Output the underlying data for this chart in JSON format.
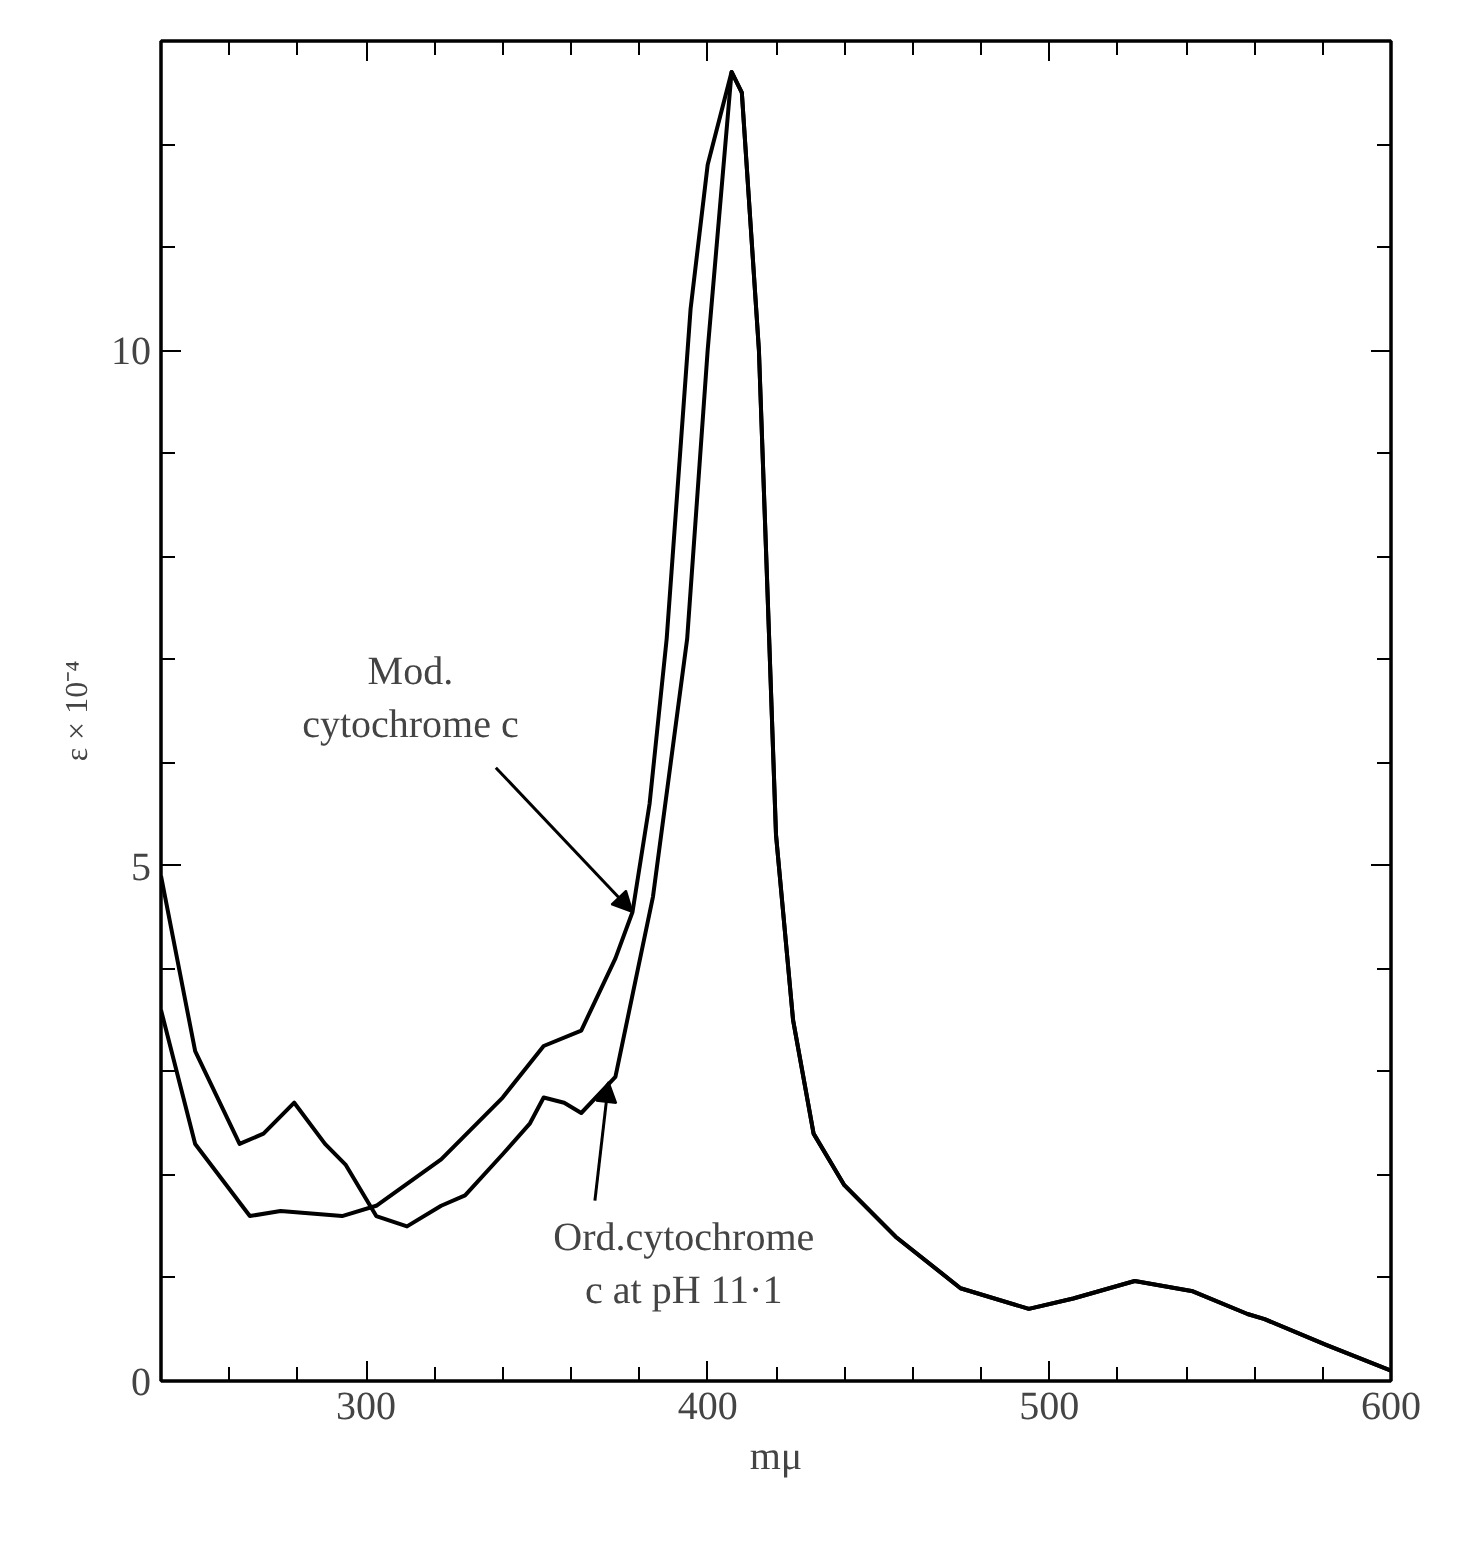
{
  "chart_data": {
    "type": "line",
    "xlabel": "mμ",
    "ylabel": "ε × 10⁻⁴",
    "xlim": [
      240,
      600
    ],
    "ylim": [
      0,
      13
    ],
    "xticks": [
      {
        "value": 260,
        "label": null
      },
      {
        "value": 280,
        "label": null
      },
      300,
      {
        "value": 320,
        "label": null
      },
      {
        "value": 340,
        "label": null
      },
      {
        "value": 360,
        "label": null
      },
      {
        "value": 380,
        "label": null
      },
      400,
      {
        "value": 420,
        "label": null
      },
      {
        "value": 440,
        "label": null
      },
      {
        "value": 460,
        "label": null
      },
      {
        "value": 480,
        "label": null
      },
      500,
      {
        "value": 520,
        "label": null
      },
      {
        "value": 540,
        "label": null
      },
      {
        "value": 560,
        "label": null
      },
      {
        "value": 580,
        "label": null
      },
      600
    ],
    "yticks": [
      0,
      {
        "value": 1,
        "label": null
      },
      {
        "value": 2,
        "label": null
      },
      {
        "value": 3,
        "label": null
      },
      {
        "value": 4,
        "label": null
      },
      5,
      {
        "value": 6,
        "label": null
      },
      {
        "value": 7,
        "label": null
      },
      {
        "value": 8,
        "label": null
      },
      {
        "value": 9,
        "label": null
      },
      10,
      {
        "value": 11,
        "label": null
      },
      {
        "value": 12,
        "label": null
      },
      {
        "value": 13,
        "label": null
      }
    ],
    "grid": false,
    "marker": "none",
    "line_style": "solid",
    "series": [
      {
        "color": "#000000",
        "x": [
          240,
          250,
          266,
          275,
          293,
          303,
          322,
          340,
          352,
          363,
          373,
          378,
          383,
          388,
          395,
          400,
          407,
          410,
          415,
          418,
          420,
          425,
          431,
          440,
          455,
          474,
          494,
          507,
          525,
          542,
          558,
          563,
          581,
          600
        ],
        "values": [
          3.6,
          2.3,
          1.6,
          1.65,
          1.6,
          1.7,
          2.15,
          2.75,
          3.25,
          3.4,
          4.1,
          4.55,
          5.6,
          7.2,
          10.4,
          11.8,
          12.7,
          12.5,
          10.0,
          7.2,
          5.3,
          3.5,
          2.4,
          1.9,
          1.4,
          0.9,
          0.7,
          0.8,
          0.97,
          0.87,
          0.65,
          0.6,
          0.35,
          0.1
        ]
      },
      {
        "color": "#000000",
        "x": [
          240,
          250,
          263,
          270,
          279,
          288,
          294,
          303,
          312,
          322,
          329,
          340,
          348,
          352,
          358,
          363,
          373,
          384,
          394,
          400,
          407,
          410,
          415,
          418,
          420,
          425,
          431,
          440,
          455,
          474,
          494,
          507,
          525,
          542,
          558,
          563,
          581,
          600
        ],
        "values": [
          4.9,
          3.2,
          2.3,
          2.4,
          2.7,
          2.3,
          2.1,
          1.6,
          1.5,
          1.7,
          1.8,
          2.2,
          2.5,
          2.75,
          2.7,
          2.6,
          2.95,
          4.7,
          7.2,
          10.0,
          12.7,
          12.5,
          10.0,
          7.2,
          5.3,
          3.5,
          2.4,
          1.9,
          1.4,
          0.9,
          0.7,
          0.8,
          0.97,
          0.87,
          0.65,
          0.6,
          0.35,
          0.1
        ]
      }
    ],
    "annotations": [
      {
        "text": "Mod.\ncytochrome c",
        "x": 378,
        "y": 4.55
      },
      {
        "text": "Ord.cytochrome\nc at pH 11·1",
        "x": 371,
        "y": 2.9
      }
    ]
  }
}
